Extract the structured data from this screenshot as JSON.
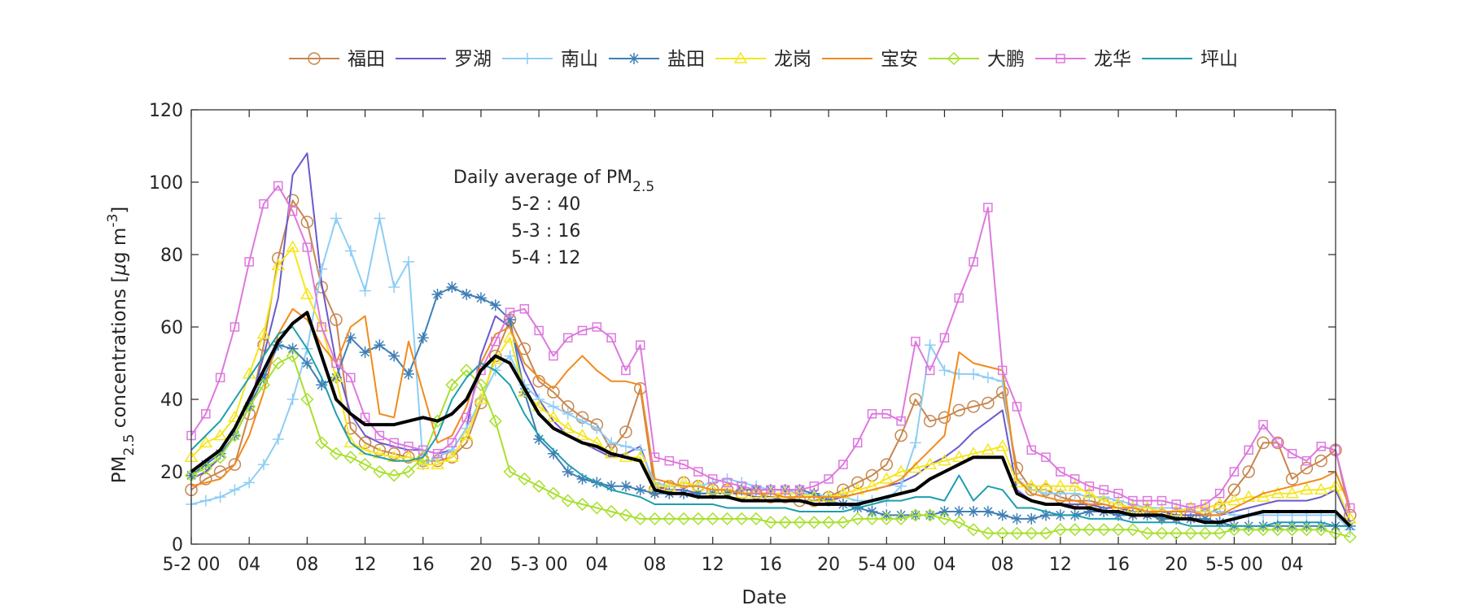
{
  "chart_data": {
    "type": "line",
    "title": "",
    "xlabel": "Date",
    "ylabel_main": "PM",
    "ylabel_sub": "2.5",
    "ylabel_rest": " concentrations [",
    "ylabel_mu": "μ",
    "ylabel_unit": "g m",
    "ylabel_sup": "-3",
    "ylabel_close": "]",
    "ylim": [
      0,
      120
    ],
    "yticks": [
      "0",
      "20",
      "40",
      "60",
      "80",
      "100",
      "120"
    ],
    "xlim": [
      0,
      79
    ],
    "xticks": [
      {
        "h": 0,
        "label": "5-2 00"
      },
      {
        "h": 4,
        "label": "04"
      },
      {
        "h": 8,
        "label": "08"
      },
      {
        "h": 12,
        "label": "12"
      },
      {
        "h": 16,
        "label": "16"
      },
      {
        "h": 20,
        "label": "20"
      },
      {
        "h": 24,
        "label": "5-3 00"
      },
      {
        "h": 28,
        "label": "04"
      },
      {
        "h": 32,
        "label": "08"
      },
      {
        "h": 36,
        "label": "12"
      },
      {
        "h": 40,
        "label": "16"
      },
      {
        "h": 44,
        "label": "20"
      },
      {
        "h": 48,
        "label": "5-4 00"
      },
      {
        "h": 52,
        "label": "04"
      },
      {
        "h": 56,
        "label": "08"
      },
      {
        "h": 60,
        "label": "12"
      },
      {
        "h": 64,
        "label": "16"
      },
      {
        "h": 68,
        "label": "20"
      },
      {
        "h": 72,
        "label": "5-5 00"
      },
      {
        "h": 76,
        "label": "04"
      }
    ],
    "legend_placement": "top-center",
    "annotation": {
      "title": "Daily average of PM",
      "title_sub": "2.5",
      "lines": [
        "5-2 : 40",
        "5-3 : 16",
        "5-4 : 12"
      ]
    },
    "series": [
      {
        "name": "福田",
        "color": "#c8864e",
        "marker": "circle",
        "values": [
          15,
          18,
          20,
          22,
          36,
          55,
          79,
          95,
          89,
          71,
          62,
          32,
          28,
          26,
          25,
          24,
          23,
          23,
          24,
          28,
          39,
          52,
          62,
          54,
          45,
          42,
          38,
          35,
          33,
          26,
          31,
          43,
          15,
          16,
          17,
          16,
          15,
          15,
          14,
          14,
          13,
          13,
          12,
          12,
          13,
          15,
          17,
          19,
          22,
          30,
          40,
          34,
          35,
          37,
          38,
          39,
          42,
          21,
          15,
          15,
          13,
          12,
          12,
          11,
          10,
          9,
          9,
          8,
          8,
          8,
          8,
          10,
          15,
          20,
          28,
          28,
          18,
          21,
          23,
          26,
          8
        ]
      },
      {
        "name": "罗湖",
        "color": "#6a5acd",
        "marker": "none",
        "values": [
          18,
          20,
          24,
          30,
          38,
          52,
          68,
          102,
          108,
          72,
          50,
          36,
          30,
          28,
          27,
          26,
          26,
          25,
          26,
          32,
          52,
          63,
          60,
          48,
          40,
          34,
          30,
          28,
          26,
          24,
          25,
          27,
          16,
          15,
          15,
          14,
          14,
          14,
          14,
          13,
          13,
          12,
          12,
          12,
          12,
          13,
          14,
          15,
          16,
          17,
          19,
          22,
          24,
          27,
          31,
          34,
          37,
          15,
          12,
          11,
          11,
          11,
          11,
          10,
          10,
          9,
          9,
          9,
          8,
          8,
          8,
          8,
          9,
          10,
          11,
          12,
          12,
          12,
          13,
          15,
          6
        ]
      },
      {
        "name": "南山",
        "color": "#8ecdf5",
        "marker": "plus",
        "values": [
          11,
          12,
          13,
          15,
          17,
          22,
          29,
          40,
          54,
          76,
          90,
          81,
          70,
          90,
          71,
          78,
          22,
          24,
          26,
          32,
          40,
          48,
          52,
          44,
          40,
          38,
          36,
          34,
          32,
          28,
          27,
          26,
          17,
          16,
          16,
          16,
          17,
          18,
          17,
          16,
          15,
          15,
          14,
          14,
          13,
          13,
          12,
          12,
          12,
          16,
          28,
          55,
          48,
          47,
          47,
          46,
          45,
          18,
          15,
          14,
          14,
          14,
          13,
          13,
          12,
          11,
          10,
          10,
          10,
          9,
          9,
          9,
          8,
          8,
          8,
          8,
          8,
          8,
          8,
          8,
          4
        ]
      },
      {
        "name": "盐田",
        "color": "#3f7fb5",
        "marker": "asterisk",
        "values": [
          19,
          22,
          25,
          30,
          38,
          46,
          55,
          54,
          50,
          44,
          46,
          57,
          53,
          55,
          52,
          47,
          57,
          69,
          71,
          69,
          68,
          66,
          62,
          42,
          29,
          25,
          20,
          18,
          17,
          16,
          16,
          15,
          14,
          14,
          14,
          14,
          14,
          14,
          15,
          15,
          15,
          15,
          15,
          14,
          12,
          11,
          10,
          9,
          8,
          8,
          8,
          8,
          9,
          9,
          9,
          9,
          8,
          7,
          7,
          8,
          8,
          8,
          9,
          9,
          8,
          8,
          8,
          7,
          7,
          7,
          7,
          6,
          5,
          5,
          5,
          5,
          5,
          5,
          5,
          5,
          5
        ]
      },
      {
        "name": "龙岗",
        "color": "#f5e61d",
        "marker": "triangle",
        "values": [
          24,
          28,
          30,
          35,
          47,
          58,
          77,
          82,
          69,
          60,
          46,
          28,
          26,
          25,
          24,
          24,
          22,
          22,
          24,
          30,
          40,
          51,
          57,
          42,
          38,
          35,
          32,
          30,
          28,
          25,
          24,
          24,
          16,
          16,
          17,
          16,
          15,
          15,
          14,
          14,
          14,
          14,
          14,
          13,
          13,
          14,
          15,
          16,
          18,
          20,
          21,
          22,
          23,
          24,
          25,
          26,
          27,
          17,
          16,
          16,
          16,
          16,
          14,
          12,
          11,
          10,
          10,
          9,
          9,
          10,
          10,
          11,
          12,
          13,
          13,
          14,
          14,
          15,
          15,
          16,
          7
        ]
      },
      {
        "name": "宝安",
        "color": "#f28a1c",
        "marker": "none",
        "values": [
          16,
          17,
          18,
          22,
          30,
          42,
          58,
          65,
          62,
          55,
          50,
          60,
          63,
          36,
          35,
          56,
          42,
          28,
          30,
          38,
          50,
          58,
          60,
          50,
          46,
          43,
          48,
          52,
          48,
          45,
          45,
          44,
          18,
          17,
          16,
          16,
          15,
          15,
          14,
          14,
          14,
          13,
          13,
          13,
          13,
          13,
          14,
          15,
          16,
          18,
          22,
          26,
          30,
          53,
          50,
          49,
          48,
          18,
          14,
          13,
          12,
          12,
          11,
          11,
          10,
          10,
          9,
          9,
          9,
          9,
          8,
          8,
          10,
          12,
          14,
          15,
          16,
          17,
          18,
          20,
          10
        ]
      },
      {
        "name": "大鹏",
        "color": "#a8e02e",
        "marker": "diamond",
        "values": [
          19,
          21,
          24,
          30,
          38,
          44,
          50,
          52,
          40,
          28,
          25,
          24,
          22,
          20,
          19,
          20,
          24,
          34,
          44,
          48,
          44,
          34,
          20,
          18,
          16,
          14,
          12,
          11,
          10,
          9,
          8,
          7,
          7,
          7,
          7,
          7,
          7,
          7,
          7,
          7,
          6,
          6,
          6,
          6,
          6,
          6,
          7,
          7,
          7,
          7,
          8,
          8,
          7,
          6,
          4,
          3,
          3,
          3,
          3,
          3,
          4,
          4,
          4,
          4,
          4,
          4,
          3,
          3,
          3,
          3,
          3,
          3,
          4,
          4,
          4,
          4,
          4,
          4,
          4,
          3,
          2
        ]
      },
      {
        "name": "龙华",
        "color": "#de78de",
        "marker": "square",
        "values": [
          30,
          36,
          46,
          60,
          78,
          94,
          99,
          92,
          82,
          60,
          50,
          46,
          35,
          30,
          28,
          27,
          26,
          25,
          28,
          35,
          48,
          56,
          64,
          65,
          59,
          52,
          57,
          59,
          60,
          57,
          48,
          55,
          24,
          23,
          22,
          20,
          18,
          17,
          16,
          15,
          15,
          15,
          15,
          16,
          18,
          22,
          28,
          36,
          36,
          34,
          56,
          48,
          57,
          68,
          78,
          93,
          48,
          38,
          26,
          24,
          20,
          18,
          16,
          15,
          14,
          12,
          12,
          12,
          11,
          10,
          11,
          14,
          20,
          26,
          33,
          28,
          25,
          23,
          27,
          26,
          10
        ]
      },
      {
        "name": "坪山",
        "color": "#1e9eaf",
        "marker": "none",
        "values": [
          26,
          30,
          34,
          40,
          46,
          52,
          58,
          60,
          54,
          46,
          36,
          28,
          25,
          24,
          23,
          23,
          24,
          30,
          40,
          46,
          50,
          48,
          44,
          36,
          30,
          26,
          22,
          19,
          17,
          15,
          14,
          13,
          11,
          11,
          11,
          11,
          11,
          10,
          10,
          10,
          10,
          10,
          9,
          9,
          9,
          9,
          10,
          11,
          12,
          12,
          13,
          13,
          12,
          19,
          12,
          16,
          15,
          10,
          10,
          9,
          8,
          8,
          7,
          7,
          7,
          6,
          6,
          6,
          6,
          5,
          5,
          5,
          5,
          5,
          5,
          6,
          6,
          6,
          6,
          5,
          5
        ]
      },
      {
        "name": "average",
        "color": "#000000",
        "marker": "none",
        "legend": false,
        "values": [
          20,
          23,
          26,
          32,
          40,
          48,
          56,
          61,
          64,
          52,
          40,
          36,
          33,
          33,
          33,
          34,
          35,
          34,
          36,
          40,
          48,
          52,
          50,
          43,
          36,
          32,
          30,
          28,
          27,
          25,
          24,
          23,
          15,
          14,
          14,
          13,
          13,
          13,
          12,
          12,
          12,
          12,
          12,
          11,
          11,
          11,
          11,
          12,
          13,
          14,
          15,
          18,
          20,
          22,
          24,
          24,
          24,
          14,
          12,
          11,
          11,
          10,
          10,
          9,
          9,
          8,
          8,
          8,
          7,
          7,
          6,
          6,
          7,
          8,
          9,
          9,
          9,
          9,
          9,
          9,
          5
        ]
      }
    ]
  }
}
